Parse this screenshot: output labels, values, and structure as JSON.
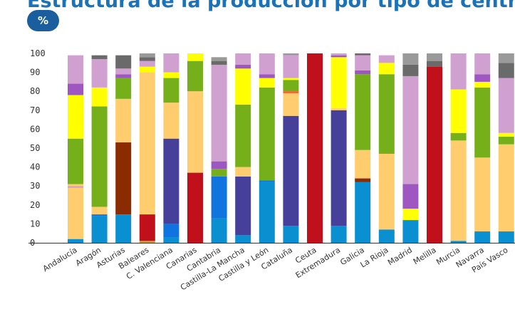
{
  "header": {
    "title": "Estructura de la producción por tipo de central",
    "unit_badge": "%"
  },
  "chart_data": {
    "type": "bar",
    "stacked": true,
    "ylim": [
      0,
      100
    ],
    "yticks": [
      0,
      10,
      20,
      30,
      40,
      50,
      60,
      70,
      80,
      90,
      100
    ],
    "grid": false,
    "categories": [
      "Andalucía",
      "Aragón",
      "Asturias",
      "Baleares",
      "C. Valenciana",
      "Canarias",
      "Cantabria",
      "Castilla-La Mancha",
      "Castilla y León",
      "Cataluña",
      "Ceuta",
      "Extremadura",
      "Galicia",
      "La Rioja",
      "Madrid",
      "Melilla",
      "Murcia",
      "Navarra",
      "País Vasco"
    ],
    "colors": [
      "#0a8fd1",
      "#0f73e0",
      "#c9a23a",
      "#8b2c00",
      "#46409a",
      "#c0101c",
      "#ffcc6e",
      "#ff5a20",
      "#75b01a",
      "#ffff00",
      "#9e57c0",
      "#d0a0d0",
      "#6a6a6a",
      "#9a9a9a"
    ],
    "stacks": [
      [
        [
          0,
          2
        ],
        [
          6,
          27
        ],
        [
          11,
          1
        ],
        [
          6,
          1
        ],
        [
          8,
          24
        ],
        [
          9,
          23
        ],
        [
          10,
          6
        ],
        [
          11,
          15
        ]
      ],
      [
        [
          0,
          14
        ],
        [
          1,
          1
        ],
        [
          6,
          4
        ],
        [
          8,
          53
        ],
        [
          9,
          10
        ],
        [
          11,
          15
        ],
        [
          12,
          2
        ]
      ],
      [
        [
          0,
          15
        ],
        [
          3,
          38
        ],
        [
          6,
          23
        ],
        [
          8,
          11
        ],
        [
          10,
          2
        ],
        [
          11,
          3
        ],
        [
          12,
          7
        ]
      ],
      [
        [
          2,
          1
        ],
        [
          5,
          14
        ],
        [
          6,
          75
        ],
        [
          9,
          3
        ],
        [
          11,
          3
        ],
        [
          12,
          2
        ],
        [
          13,
          2
        ]
      ],
      [
        [
          0,
          3
        ],
        [
          1,
          7
        ],
        [
          4,
          45
        ],
        [
          6,
          19
        ],
        [
          8,
          13
        ],
        [
          9,
          3
        ],
        [
          11,
          10
        ]
      ],
      [
        [
          5,
          37
        ],
        [
          6,
          43
        ],
        [
          8,
          16
        ],
        [
          9,
          4
        ]
      ],
      [
        [
          0,
          13
        ],
        [
          1,
          22
        ],
        [
          8,
          4
        ],
        [
          10,
          4
        ],
        [
          11,
          51
        ],
        [
          12,
          2
        ],
        [
          13,
          2
        ]
      ],
      [
        [
          0,
          4
        ],
        [
          4,
          31
        ],
        [
          6,
          5
        ],
        [
          8,
          33
        ],
        [
          9,
          19
        ],
        [
          10,
          2
        ],
        [
          11,
          6
        ]
      ],
      [
        [
          0,
          32
        ],
        [
          1,
          1
        ],
        [
          8,
          49
        ],
        [
          9,
          5
        ],
        [
          10,
          2
        ],
        [
          11,
          11
        ]
      ],
      [
        [
          0,
          9
        ],
        [
          4,
          58
        ],
        [
          6,
          12
        ],
        [
          7,
          1
        ],
        [
          8,
          6
        ],
        [
          9,
          1
        ],
        [
          11,
          12
        ],
        [
          13,
          1
        ]
      ],
      [
        [
          5,
          100
        ]
      ],
      [
        [
          0,
          9
        ],
        [
          4,
          61
        ],
        [
          6,
          1
        ],
        [
          9,
          27
        ],
        [
          10,
          1
        ],
        [
          11,
          1
        ]
      ],
      [
        [
          0,
          32
        ],
        [
          3,
          2
        ],
        [
          6,
          15
        ],
        [
          8,
          40
        ],
        [
          10,
          2
        ],
        [
          11,
          8
        ],
        [
          12,
          1
        ]
      ],
      [
        [
          0,
          7
        ],
        [
          6,
          40
        ],
        [
          8,
          42
        ],
        [
          9,
          6
        ],
        [
          11,
          4
        ]
      ],
      [
        [
          0,
          12
        ],
        [
          9,
          6
        ],
        [
          10,
          13
        ],
        [
          11,
          57
        ],
        [
          12,
          6
        ],
        [
          13,
          6
        ]
      ],
      [
        [
          5,
          93
        ],
        [
          12,
          3
        ],
        [
          13,
          4
        ]
      ],
      [
        [
          0,
          1
        ],
        [
          6,
          53
        ],
        [
          8,
          4
        ],
        [
          9,
          23
        ],
        [
          11,
          19
        ]
      ],
      [
        [
          0,
          6
        ],
        [
          6,
          39
        ],
        [
          8,
          37
        ],
        [
          9,
          3
        ],
        [
          10,
          4
        ],
        [
          11,
          11
        ]
      ],
      [
        [
          0,
          6
        ],
        [
          6,
          46
        ],
        [
          8,
          4
        ],
        [
          9,
          2
        ],
        [
          11,
          29
        ],
        [
          12,
          8
        ],
        [
          13,
          5
        ]
      ]
    ]
  }
}
